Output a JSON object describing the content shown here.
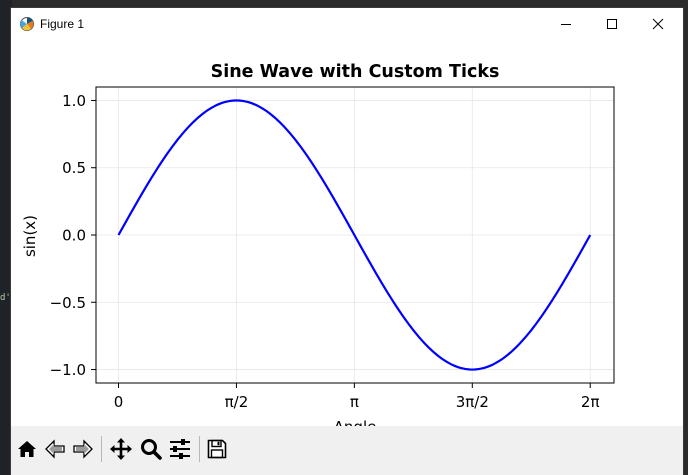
{
  "background": {
    "peek_text": "d'"
  },
  "window": {
    "title": "Figure 1",
    "controls": {
      "minimize_icon": "minimize-icon",
      "maximize_icon": "maximize-icon",
      "close_icon": "close-icon"
    }
  },
  "toolbar": {
    "tools": [
      "home-icon",
      "back-arrow-icon",
      "forward-arrow-icon",
      "pan-icon",
      "zoom-icon",
      "configure-subplots-icon",
      "save-icon"
    ]
  },
  "chart_data": {
    "type": "line",
    "title": "Sine Wave with Custom Ticks",
    "xlabel": "Angle",
    "ylabel": "sin(x)",
    "xlim": [
      -0.3,
      6.6
    ],
    "ylim": [
      -1.1,
      1.1
    ],
    "xticks": [
      0,
      1.5708,
      3.1416,
      4.7124,
      6.2832
    ],
    "xtick_labels": [
      "0",
      "π/2",
      "π",
      "3π/2",
      "2π"
    ],
    "yticks": [
      -1.0,
      -0.5,
      0.0,
      0.5,
      1.0
    ],
    "ytick_labels": [
      "−1.0",
      "−0.5",
      "0.0",
      "0.5",
      "1.0"
    ],
    "grid": true,
    "series": [
      {
        "function": "sin",
        "x_range": [
          0,
          6.2832
        ],
        "color": "#0000ff"
      }
    ]
  }
}
